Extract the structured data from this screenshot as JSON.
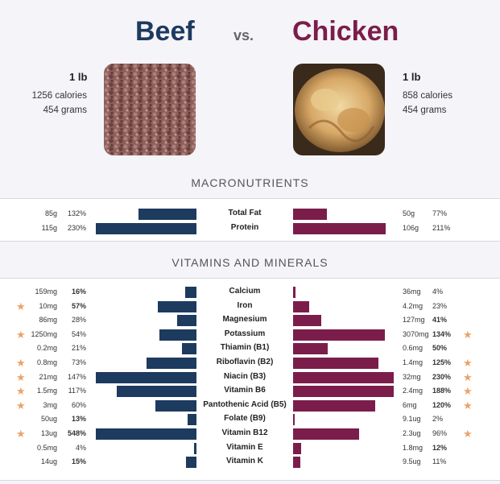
{
  "header": {
    "beef_title": "Beef",
    "vs": "vs.",
    "chicken_title": "Chicken"
  },
  "beef": {
    "amount": "1 lb",
    "calories": "1256 calories",
    "grams": "454 grams"
  },
  "chicken": {
    "amount": "1 lb",
    "calories": "858 calories",
    "grams": "454 grams"
  },
  "sections": {
    "macros": "MACRONUTRIENTS",
    "vitamins": "VITAMINS AND MINERALS"
  },
  "colors": {
    "beef": "#1d3a5f",
    "chicken": "#7b1d4b",
    "star": "#e9a36a"
  },
  "chart_data": {
    "type": "bar",
    "series": [
      {
        "name": "Beef"
      },
      {
        "name": "Chicken"
      }
    ],
    "macronutrients": [
      {
        "name": "Total Fat",
        "beef_amount": "85g",
        "beef_pct": 132,
        "beef_pct_label": "132%",
        "chicken_amount": "50g",
        "chicken_pct": 77,
        "chicken_pct_label": "77%"
      },
      {
        "name": "Protein",
        "beef_amount": "115g",
        "beef_pct": 230,
        "beef_pct_label": "230%",
        "chicken_amount": "106g",
        "chicken_pct": 211,
        "chicken_pct_label": "211%"
      }
    ],
    "vitamins": [
      {
        "name": "Calcium",
        "beef_amount": "159mg",
        "beef_pct": 16,
        "beef_pct_label": "16%",
        "beef_bold": true,
        "beef_star": false,
        "chicken_amount": "36mg",
        "chicken_pct": 4,
        "chicken_pct_label": "4%",
        "chicken_bold": false,
        "chicken_star": false
      },
      {
        "name": "Iron",
        "beef_amount": "10mg",
        "beef_pct": 57,
        "beef_pct_label": "57%",
        "beef_bold": true,
        "beef_star": true,
        "chicken_amount": "4.2mg",
        "chicken_pct": 23,
        "chicken_pct_label": "23%",
        "chicken_bold": false,
        "chicken_star": false
      },
      {
        "name": "Magnesium",
        "beef_amount": "86mg",
        "beef_pct": 28,
        "beef_pct_label": "28%",
        "beef_bold": false,
        "beef_star": false,
        "chicken_amount": "127mg",
        "chicken_pct": 41,
        "chicken_pct_label": "41%",
        "chicken_bold": true,
        "chicken_star": false
      },
      {
        "name": "Potassium",
        "beef_amount": "1250mg",
        "beef_pct": 54,
        "beef_pct_label": "54%",
        "beef_bold": false,
        "beef_star": true,
        "chicken_amount": "3070mg",
        "chicken_pct": 134,
        "chicken_pct_label": "134%",
        "chicken_bold": true,
        "chicken_star": true
      },
      {
        "name": "Thiamin (B1)",
        "beef_amount": "0.2mg",
        "beef_pct": 21,
        "beef_pct_label": "21%",
        "beef_bold": false,
        "beef_star": false,
        "chicken_amount": "0.6mg",
        "chicken_pct": 50,
        "chicken_pct_label": "50%",
        "chicken_bold": true,
        "chicken_star": false
      },
      {
        "name": "Riboflavin (B2)",
        "beef_amount": "0.8mg",
        "beef_pct": 73,
        "beef_pct_label": "73%",
        "beef_bold": false,
        "beef_star": true,
        "chicken_amount": "1.4mg",
        "chicken_pct": 125,
        "chicken_pct_label": "125%",
        "chicken_bold": true,
        "chicken_star": true
      },
      {
        "name": "Niacin (B3)",
        "beef_amount": "21mg",
        "beef_pct": 147,
        "beef_pct_label": "147%",
        "beef_bold": false,
        "beef_star": true,
        "chicken_amount": "32mg",
        "chicken_pct": 230,
        "chicken_pct_label": "230%",
        "chicken_bold": true,
        "chicken_star": true
      },
      {
        "name": "Vitamin B6",
        "beef_amount": "1.5mg",
        "beef_pct": 117,
        "beef_pct_label": "117%",
        "beef_bold": false,
        "beef_star": true,
        "chicken_amount": "2.4mg",
        "chicken_pct": 188,
        "chicken_pct_label": "188%",
        "chicken_bold": true,
        "chicken_star": true
      },
      {
        "name": "Pantothenic Acid (B5)",
        "beef_amount": "3mg",
        "beef_pct": 60,
        "beef_pct_label": "60%",
        "beef_bold": false,
        "beef_star": true,
        "chicken_amount": "6mg",
        "chicken_pct": 120,
        "chicken_pct_label": "120%",
        "chicken_bold": true,
        "chicken_star": true
      },
      {
        "name": "Folate (B9)",
        "beef_amount": "50ug",
        "beef_pct": 13,
        "beef_pct_label": "13%",
        "beef_bold": true,
        "beef_star": false,
        "chicken_amount": "9.1ug",
        "chicken_pct": 2,
        "chicken_pct_label": "2%",
        "chicken_bold": false,
        "chicken_star": false
      },
      {
        "name": "Vitamin B12",
        "beef_amount": "13ug",
        "beef_pct": 548,
        "beef_pct_label": "548%",
        "beef_bold": true,
        "beef_star": true,
        "chicken_amount": "2.3ug",
        "chicken_pct": 96,
        "chicken_pct_label": "96%",
        "chicken_bold": false,
        "chicken_star": true
      },
      {
        "name": "Vitamin E",
        "beef_amount": "0.5mg",
        "beef_pct": 4,
        "beef_pct_label": "4%",
        "beef_bold": false,
        "beef_star": false,
        "chicken_amount": "1.8mg",
        "chicken_pct": 12,
        "chicken_pct_label": "12%",
        "chicken_bold": true,
        "chicken_star": false
      },
      {
        "name": "Vitamin K",
        "beef_amount": "14ug",
        "beef_pct": 15,
        "beef_pct_label": "15%",
        "beef_bold": true,
        "beef_star": false,
        "chicken_amount": "9.5ug",
        "chicken_pct": 11,
        "chicken_pct_label": "11%",
        "chicken_bold": false,
        "chicken_star": false
      }
    ]
  }
}
